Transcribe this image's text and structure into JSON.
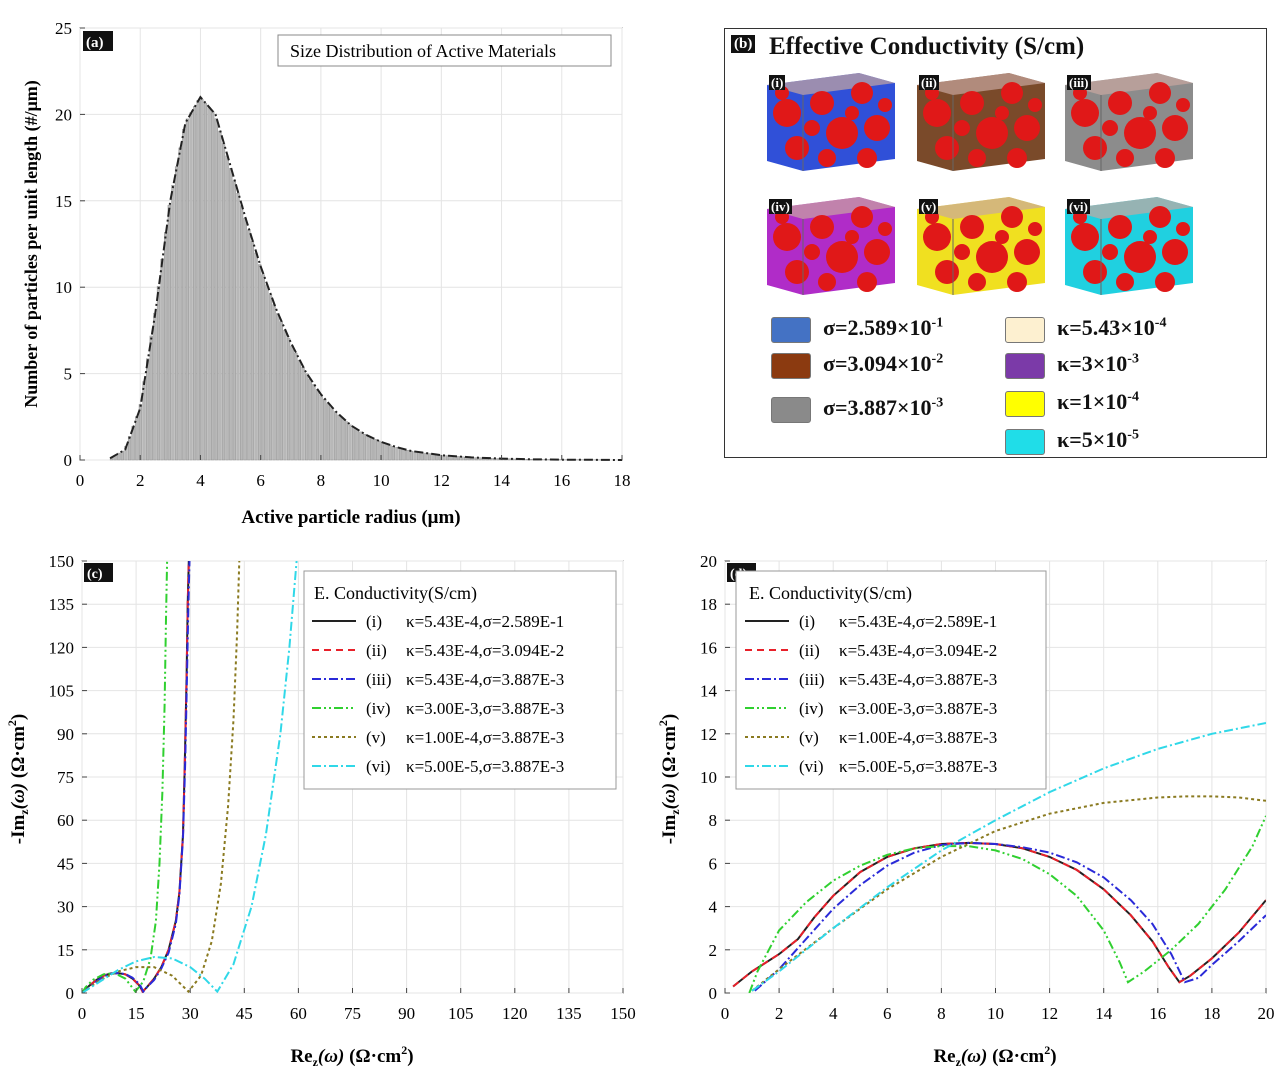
{
  "panels": {
    "a": {
      "tag": "(a)",
      "legend": "Size Distribution of Active Materials",
      "xlabel": "Active particle radius (μm)",
      "ylabel": "Number of particles per unit length  (#/μm)",
      "xticks": [
        "0",
        "2",
        "4",
        "6",
        "8",
        "10",
        "12",
        "14",
        "16",
        "18"
      ],
      "yticks": [
        "0",
        "5",
        "10",
        "15",
        "20",
        "25"
      ]
    },
    "b": {
      "tag": "(b)",
      "title": "Effective Conductivity (S/cm)",
      "cubes": [
        {
          "label": "(i)",
          "phase": "#3050d8"
        },
        {
          "label": "(ii)",
          "phase": "#7a4a2a"
        },
        {
          "label": "(iii)",
          "phase": "#8c8c8c"
        },
        {
          "label": "(iv)",
          "phase": "#b02cc8"
        },
        {
          "label": "(v)",
          "phase": "#f0e020"
        },
        {
          "label": "(vi)",
          "phase": "#20d0e0"
        }
      ],
      "legend": [
        {
          "text": "σ=2.589×10",
          "exp": "-1",
          "color": "#4472c4"
        },
        {
          "text": "σ=3.094×10",
          "exp": "-2",
          "color": "#8b3a10"
        },
        {
          "text": "σ=3.887×10",
          "exp": "-3",
          "color": "#8a8a8a"
        },
        {
          "text": "κ=5.43×10",
          "exp": "-4",
          "color": "#fdf0d0"
        },
        {
          "text": "κ=3×10",
          "exp": "-3",
          "color": "#7b3aa8"
        },
        {
          "text": "κ=1×10",
          "exp": "-4",
          "color": "#ffff00"
        },
        {
          "text": "κ=5×10",
          "exp": "-5",
          "color": "#20dde8"
        }
      ]
    },
    "c": {
      "tag": "(c)",
      "xlabel": "Re",
      "ylabel": "-Im",
      "legend_title": "E. Conductivity(S/cm)",
      "xticks": [
        "0",
        "15",
        "30",
        "45",
        "60",
        "75",
        "90",
        "105",
        "120",
        "135",
        "150"
      ],
      "yticks": [
        "0",
        "15",
        "30",
        "45",
        "60",
        "75",
        "90",
        "105",
        "120",
        "135",
        "150"
      ]
    },
    "d": {
      "tag": "(d)",
      "xlabel": "Re",
      "ylabel": "-Im",
      "legend_title": "E. Conductivity(S/cm)",
      "xticks": [
        "0",
        "2",
        "4",
        "6",
        "8",
        "10",
        "12",
        "14",
        "16",
        "18",
        "20"
      ],
      "yticks": [
        "0",
        "2",
        "4",
        "6",
        "8",
        "10",
        "12",
        "14",
        "16",
        "18",
        "20"
      ]
    }
  },
  "axis_text": {
    "re_label": "Re",
    "im_label": "-Im",
    "sub": "z",
    "omega": "(ω)",
    "unit": "(Ω·cm",
    "unit_sup": "2",
    "unit_close": ")"
  },
  "chart_data": [
    {
      "type": "bar",
      "title": "Size Distribution of Active Materials",
      "xlabel": "Active particle radius (μm)",
      "ylabel": "Number of particles per unit length  (#/μm)",
      "xlim": [
        0,
        18
      ],
      "ylim": [
        0,
        25
      ],
      "x": [
        1.0,
        1.5,
        2.0,
        2.5,
        3.0,
        3.5,
        4.0,
        4.5,
        5.0,
        5.5,
        6.0,
        6.5,
        7.0,
        7.5,
        8.0,
        8.5,
        9.0,
        9.5,
        10.0,
        10.5,
        11.0,
        12.0,
        13.0,
        14.0,
        15.0,
        16.0,
        17.0,
        18.0
      ],
      "values": [
        0.1,
        0.6,
        3.0,
        8.5,
        15.0,
        19.5,
        21.0,
        20.0,
        17.0,
        14.0,
        11.2,
        8.8,
        6.8,
        5.1,
        3.8,
        2.8,
        2.0,
        1.45,
        1.05,
        0.75,
        0.52,
        0.28,
        0.15,
        0.08,
        0.04,
        0.02,
        0.01,
        0.0
      ]
    },
    {
      "type": "line",
      "panel": "c",
      "xlabel": "Re_z(ω) (Ω·cm²)",
      "ylabel": "-Im_z(ω) (Ω·cm²)",
      "xlim": [
        0,
        150
      ],
      "ylim": [
        0,
        150
      ],
      "series": [
        {
          "name": "(i)",
          "label": "κ=5.43E-4,σ=2.589E-1",
          "color": "#222222",
          "dash": "",
          "x": [
            0,
            2,
            4,
            6,
            8,
            10,
            12,
            14,
            16,
            16.8,
            18,
            20,
            22,
            24,
            26,
            27,
            28,
            28.5,
            29,
            29.3,
            29.6
          ],
          "y": [
            0,
            2.5,
            4.5,
            6,
            6.8,
            6.9,
            6.5,
            5,
            2.5,
            0.5,
            2,
            5,
            9,
            15,
            25,
            35,
            55,
            80,
            110,
            135,
            150
          ]
        },
        {
          "name": "(ii)",
          "label": "κ=5.43E-4,σ=3.094E-2",
          "color": "#e8202a",
          "dash": "7,5",
          "x": [
            0,
            2,
            4,
            6,
            8,
            10,
            12,
            14,
            16,
            16.8,
            18,
            20,
            22,
            24,
            26,
            27,
            28,
            28.5,
            29,
            29.3,
            29.6
          ],
          "y": [
            0,
            2.5,
            4.5,
            6,
            6.8,
            6.9,
            6.5,
            5,
            2.5,
            0.5,
            2,
            5,
            9,
            15,
            25,
            35,
            55,
            80,
            110,
            135,
            150
          ]
        },
        {
          "name": "(iii)",
          "label": "κ=5.43E-4,σ=3.887E-3",
          "color": "#2a2ad8",
          "dash": "9,3,2,3",
          "x": [
            0,
            2,
            4,
            6,
            8,
            10,
            12,
            14,
            16,
            17,
            18,
            20,
            22,
            24,
            26,
            27,
            28,
            28.6,
            29.1,
            29.5,
            29.8
          ],
          "y": [
            0,
            2,
            4,
            5.8,
            6.7,
            6.9,
            6.6,
            5.3,
            3,
            0.5,
            2,
            4.5,
            8.5,
            14,
            24,
            34,
            54,
            80,
            110,
            135,
            150
          ]
        },
        {
          "name": "(iv)",
          "label": "κ=3.00E-3,σ=3.887E-3",
          "color": "#30d030",
          "dash": "9,3,2,3,2,3",
          "x": [
            0,
            1,
            3,
            6,
            9,
            12,
            14.8,
            17,
            19,
            20.5,
            21.5,
            22.3,
            22.9,
            23.3,
            23.6
          ],
          "y": [
            0,
            2,
            4.5,
            6.5,
            6.9,
            5,
            0.5,
            4,
            12,
            25,
            45,
            70,
            100,
            130,
            150
          ]
        },
        {
          "name": "(v)",
          "label": "κ=1.00E-4,σ=3.887E-3",
          "color": "#8a7a20",
          "dash": "3,3",
          "x": [
            0,
            5,
            10,
            15,
            20,
            25,
            29.5,
            33,
            36,
            38.5,
            40.5,
            42,
            43,
            43.6
          ],
          "y": [
            0,
            4.5,
            7.5,
            9,
            9,
            6,
            0.5,
            6,
            18,
            38,
            65,
            95,
            125,
            150
          ]
        },
        {
          "name": "(vi)",
          "label": "κ=5.00E-5,σ=3.887E-3",
          "color": "#30d8e8",
          "dash": "9,3,2,3",
          "x": [
            0,
            5,
            10,
            15,
            20,
            25,
            30,
            34,
            37.5,
            42,
            47,
            51,
            55,
            57.5,
            59.5
          ],
          "y": [
            0,
            4,
            8,
            11,
            12.5,
            12,
            9,
            5,
            0.5,
            10,
            30,
            55,
            90,
            120,
            150
          ]
        }
      ]
    },
    {
      "type": "line",
      "panel": "d",
      "xlabel": "Re_z(ω) (Ω·cm²)",
      "ylabel": "-Im_z(ω) (Ω·cm²)",
      "xlim": [
        0,
        20
      ],
      "ylim": [
        0,
        20
      ],
      "series": [
        {
          "name": "(i)",
          "label": "κ=5.43E-4,σ=2.589E-1",
          "color": "#222222",
          "dash": "",
          "x": [
            0.3,
            1,
            2,
            2.7,
            3.3,
            4,
            5,
            6,
            7,
            8,
            9,
            10,
            11,
            12,
            13,
            14,
            15,
            15.8,
            16.4,
            16.8,
            17.2,
            18,
            19,
            20
          ],
          "y": [
            0.3,
            1,
            1.8,
            2.5,
            3.5,
            4.5,
            5.6,
            6.3,
            6.7,
            6.9,
            6.95,
            6.9,
            6.7,
            6.3,
            5.7,
            4.8,
            3.6,
            2.4,
            1.2,
            0.5,
            0.8,
            1.6,
            2.8,
            4.3
          ]
        },
        {
          "name": "(ii)",
          "label": "κ=5.43E-4,σ=3.094E-2",
          "color": "#e8202a",
          "dash": "7,5",
          "x": [
            0.3,
            1,
            2,
            2.7,
            3.3,
            4,
            5,
            6,
            7,
            8,
            9,
            10,
            11,
            12,
            13,
            14,
            15,
            15.8,
            16.4,
            16.8,
            17.2,
            18,
            19,
            20
          ],
          "y": [
            0.3,
            1,
            1.8,
            2.5,
            3.5,
            4.5,
            5.6,
            6.3,
            6.7,
            6.9,
            6.95,
            6.9,
            6.7,
            6.3,
            5.7,
            4.8,
            3.6,
            2.4,
            1.2,
            0.5,
            0.8,
            1.6,
            2.8,
            4.3
          ]
        },
        {
          "name": "(iii)",
          "label": "κ=5.43E-4,σ=3.887E-3",
          "color": "#2a2ad8",
          "dash": "9,3,2,3",
          "x": [
            1.1,
            2,
            3,
            4,
            5,
            6,
            7,
            8,
            9,
            10,
            11,
            12,
            13,
            14,
            15,
            15.8,
            16.5,
            17,
            17.5,
            18,
            19,
            20
          ],
          "y": [
            0.1,
            1.1,
            2.5,
            3.9,
            5,
            5.9,
            6.5,
            6.85,
            6.95,
            6.9,
            6.75,
            6.5,
            6.05,
            5.35,
            4.3,
            3.2,
            1.8,
            0.5,
            0.7,
            1.3,
            2.4,
            3.6
          ]
        },
        {
          "name": "(iv)",
          "label": "κ=3.00E-3,σ=3.887E-3",
          "color": "#30d030",
          "dash": "9,3,2,3,2,3",
          "x": [
            0.9,
            1.2,
            2,
            3,
            4,
            5,
            6,
            7,
            8,
            9,
            10,
            11,
            12,
            13,
            14,
            14.6,
            14.9,
            15.5,
            16.5,
            17.5,
            18.5,
            19.5,
            20
          ],
          "y": [
            0,
            1,
            2.9,
            4.2,
            5.2,
            5.9,
            6.4,
            6.7,
            6.8,
            6.8,
            6.6,
            6.2,
            5.5,
            4.5,
            2.9,
            1.4,
            0.5,
            1,
            2,
            3.2,
            4.8,
            6.8,
            8.2
          ]
        },
        {
          "name": "(v)",
          "label": "κ=1.00E-4,σ=3.887E-3",
          "color": "#8a7a20",
          "dash": "3,3",
          "x": [
            1,
            2,
            4,
            6,
            8,
            10,
            12,
            14,
            16,
            17,
            18,
            19,
            20
          ],
          "y": [
            0.1,
            1.1,
            3,
            4.8,
            6.3,
            7.5,
            8.3,
            8.8,
            9.05,
            9.1,
            9.1,
            9.05,
            8.9
          ]
        },
        {
          "name": "(vi)",
          "label": "κ=5.00E-5,σ=3.887E-3",
          "color": "#30d8e8",
          "dash": "9,3,2,3",
          "x": [
            1,
            2,
            4,
            6,
            8,
            10,
            12,
            14,
            16,
            18,
            20
          ],
          "y": [
            0.1,
            1,
            3,
            4.9,
            6.6,
            8,
            9.3,
            10.4,
            11.3,
            12,
            12.5
          ]
        }
      ]
    }
  ]
}
